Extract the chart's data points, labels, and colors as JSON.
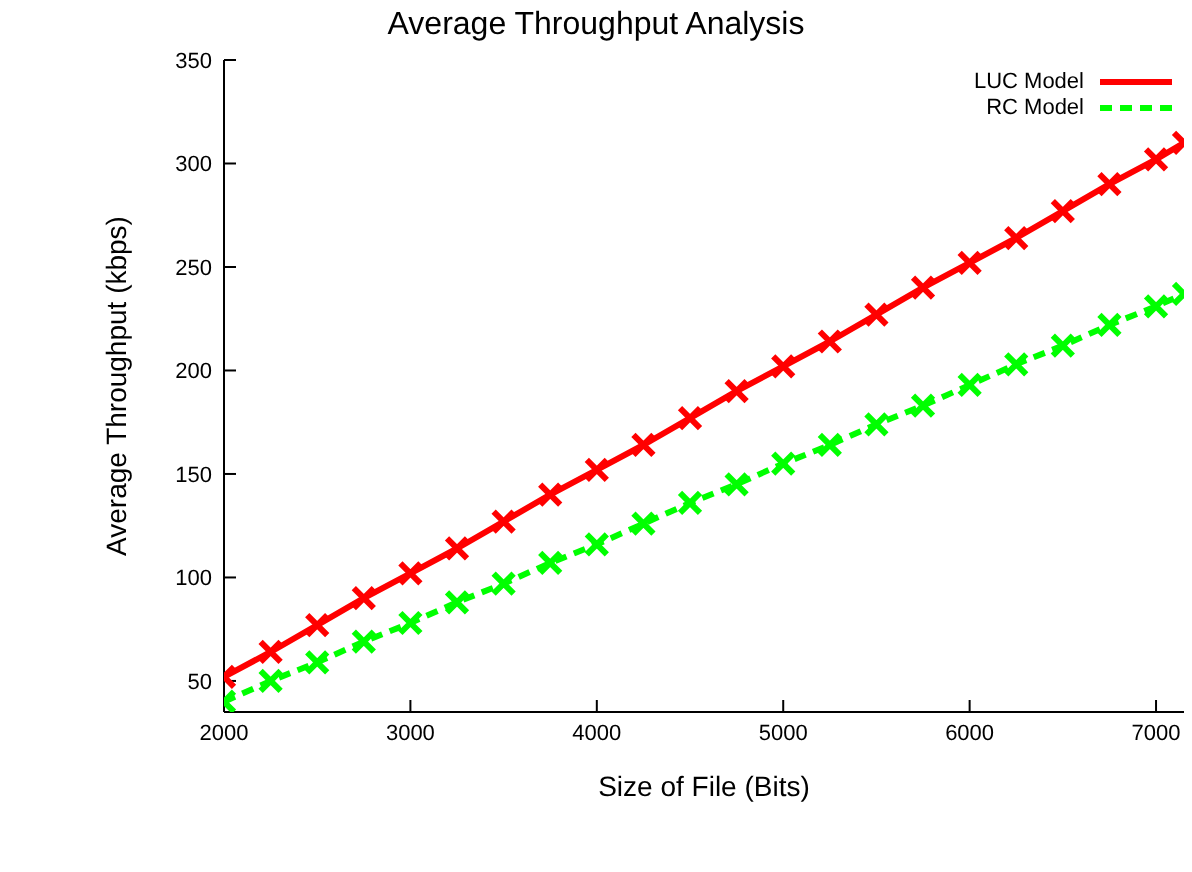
{
  "chart_data": {
    "type": "line",
    "title": "Average Throughput Analysis",
    "xlabel": "Size of File (Bits)",
    "ylabel": "Average Throughput (kbps)",
    "x": [
      2000,
      2250,
      2500,
      2750,
      3000,
      3250,
      3500,
      3750,
      4000,
      4250,
      4500,
      4750,
      5000,
      5250,
      5500,
      5750,
      6000,
      6250,
      6500,
      6750,
      7000,
      7150
    ],
    "series": [
      {
        "name": "LUC Model",
        "color": "#ff0000",
        "line_style": "solid",
        "marker": "cross",
        "values": [
          52,
          64,
          77,
          90,
          102,
          114,
          127,
          140,
          152,
          164,
          177,
          190,
          202,
          214,
          227,
          240,
          252,
          264,
          277,
          290,
          302,
          310
        ]
      },
      {
        "name": "RC Model",
        "color": "#00ff00",
        "line_style": "dashed",
        "marker": "cross",
        "values": [
          40,
          50,
          59,
          69,
          78,
          88,
          97,
          107,
          116,
          126,
          136,
          145,
          155,
          164,
          174,
          183,
          193,
          203,
          212,
          222,
          231,
          237
        ]
      }
    ],
    "xlim": [
      2000,
      7150
    ],
    "xticks": [
      2000,
      3000,
      4000,
      5000,
      6000,
      7000
    ],
    "ylim": [
      35,
      350
    ],
    "yticks": [
      50,
      100,
      150,
      200,
      250,
      300,
      350
    ],
    "grid": false,
    "legend": "top right"
  }
}
